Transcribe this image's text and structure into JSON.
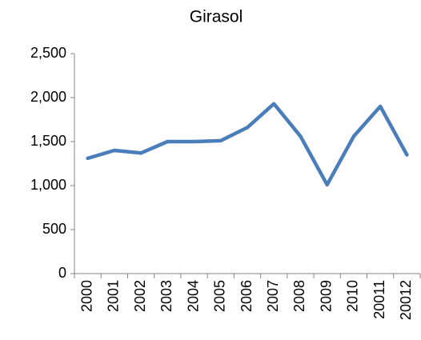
{
  "chart_data": {
    "type": "line",
    "title": "Girasol",
    "categories": [
      "2000",
      "2001",
      "2002",
      "2003",
      "2004",
      "2005",
      "2006",
      "2007",
      "2008",
      "2009",
      "2010",
      "20011",
      "20012"
    ],
    "values": [
      1310,
      1400,
      1370,
      1500,
      1500,
      1510,
      1660,
      1930,
      1560,
      1010,
      1560,
      1900,
      1350
    ],
    "color": "#4a7ebb",
    "ylim": [
      0,
      2500
    ],
    "yticks": [
      0,
      500,
      {
        "value": 1000,
        "label": "1,000"
      },
      {
        "value": 1500,
        "label": "1,500"
      },
      {
        "value": 2000,
        "label": "2,000"
      },
      {
        "value": 2500,
        "label": "2,500"
      }
    ],
    "grid": false
  }
}
